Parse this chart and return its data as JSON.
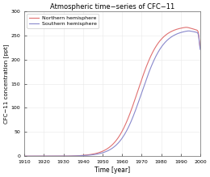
{
  "title": "Atmospheric time−series of CFC−11",
  "xlabel": "Time [year]",
  "ylabel": "CFC−11 concentration [ppt]",
  "xlim": [
    1910,
    2000
  ],
  "ylim": [
    0,
    300
  ],
  "xticks": [
    1910,
    1920,
    1930,
    1940,
    1950,
    1960,
    1970,
    1980,
    1990,
    2000
  ],
  "yticks": [
    0,
    50,
    100,
    150,
    200,
    250,
    300
  ],
  "north_color": "#e07070",
  "south_color": "#8888cc",
  "legend_labels": [
    "Northern hemisphere",
    "Southern hemisphere"
  ],
  "background_color": "#ffffff",
  "grid_color": "#e8e8e8",
  "figsize": [
    2.6,
    2.19
  ],
  "dpi": 100
}
